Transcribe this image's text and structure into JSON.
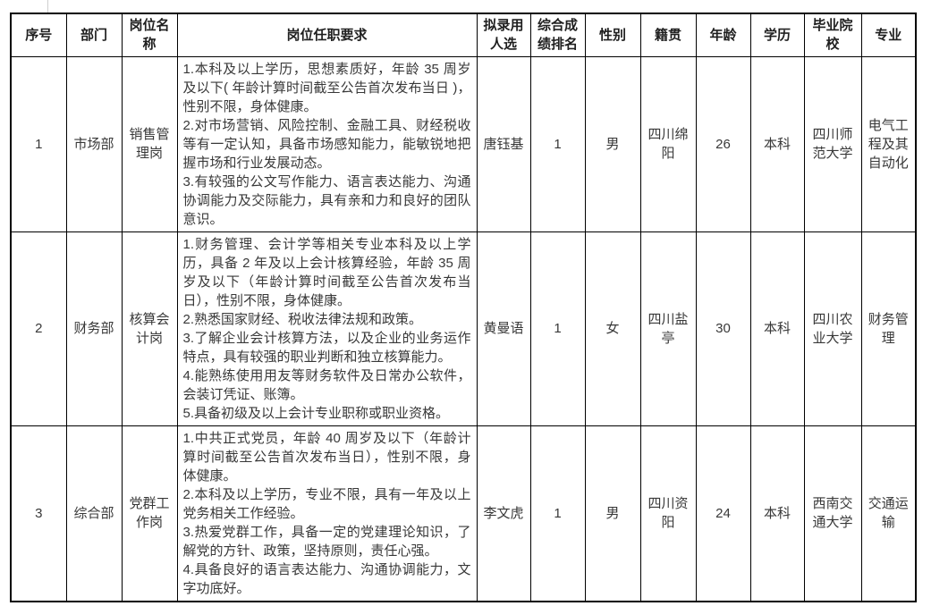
{
  "page": {
    "background": "#ffffff",
    "border_color": "#000000",
    "text_color": "#383838"
  },
  "table": {
    "columns": [
      {
        "key": "index",
        "label": "序号"
      },
      {
        "key": "dept",
        "label": "部门"
      },
      {
        "key": "position",
        "label": "岗位名称"
      },
      {
        "key": "requirements",
        "label": "岗位任职要求"
      },
      {
        "key": "candidate",
        "label": "拟录用人选"
      },
      {
        "key": "rank",
        "label": "综合成绩排名"
      },
      {
        "key": "gender",
        "label": "性别"
      },
      {
        "key": "hometown",
        "label": "籍贯"
      },
      {
        "key": "age",
        "label": "年龄"
      },
      {
        "key": "education",
        "label": "学历"
      },
      {
        "key": "school",
        "label": "毕业院校"
      },
      {
        "key": "major",
        "label": "专业"
      }
    ],
    "rows": [
      {
        "index": "1",
        "dept": "市场部",
        "position": "销售管理岗",
        "requirements": [
          "1.本科及以上学历，思想素质好，年龄 35 周岁及以下( 年龄计算时间截至公告首次发布当日 )，性别不限，身体健康。",
          "2.对市场营销、风险控制、金融工具、财经税收等有一定认知，具备市场感知能力，能敏锐地把握市场和行业发展动态。",
          "3.有较强的公文写作能力、语言表达能力、沟通协调能力及交际能力，具有亲和力和良好的团队意识。"
        ],
        "candidate": "唐钰基",
        "rank": "1",
        "gender": "男",
        "hometown": "四川绵阳",
        "age": "26",
        "education": "本科",
        "school": "四川师范大学",
        "major": "电气工程及其自动化"
      },
      {
        "index": "2",
        "dept": "财务部",
        "position": "核算会计岗",
        "requirements": [
          "1.财务管理、会计学等相关专业本科及以上学历，具备 2 年及以上会计核算经验，年龄 35 周岁及以下（年龄计算时间截至公告首次发布当日），性别不限，身体健康。",
          "2.熟悉国家财经、税收法律法规和政策。",
          "3.了解企业会计核算方法，以及企业的业务运作特点，具有较强的职业判断和独立核算能力。",
          "4.能熟练使用用友等财务软件及日常办公软件，会装订凭证、账簿。",
          "5.具备初级及以上会计专业职称或职业资格。"
        ],
        "candidate": "黄曼语",
        "rank": "1",
        "gender": "女",
        "hometown": "四川盐亭",
        "age": "30",
        "education": "本科",
        "school": "四川农业大学",
        "major": "财务管理"
      },
      {
        "index": "3",
        "dept": "综合部",
        "position": "党群工作岗",
        "requirements": [
          "1.中共正式党员，年龄 40 周岁及以下（年龄计算时间截至公告首次发布当日），性别不限，身体健康。",
          "2.本科及以上学历，专业不限，具有一年及以上党务相关工作经验。",
          "3.热爱党群工作，具备一定的党建理论知识，了解党的方针、政策，坚持原则，责任心强。",
          "4.具备良好的语言表达能力、沟通协调能力，文字功底好。"
        ],
        "candidate": "李文虎",
        "rank": "1",
        "gender": "男",
        "hometown": "四川资阳",
        "age": "24",
        "education": "本科",
        "school": "西南交通大学",
        "major": "交通运输"
      }
    ]
  }
}
